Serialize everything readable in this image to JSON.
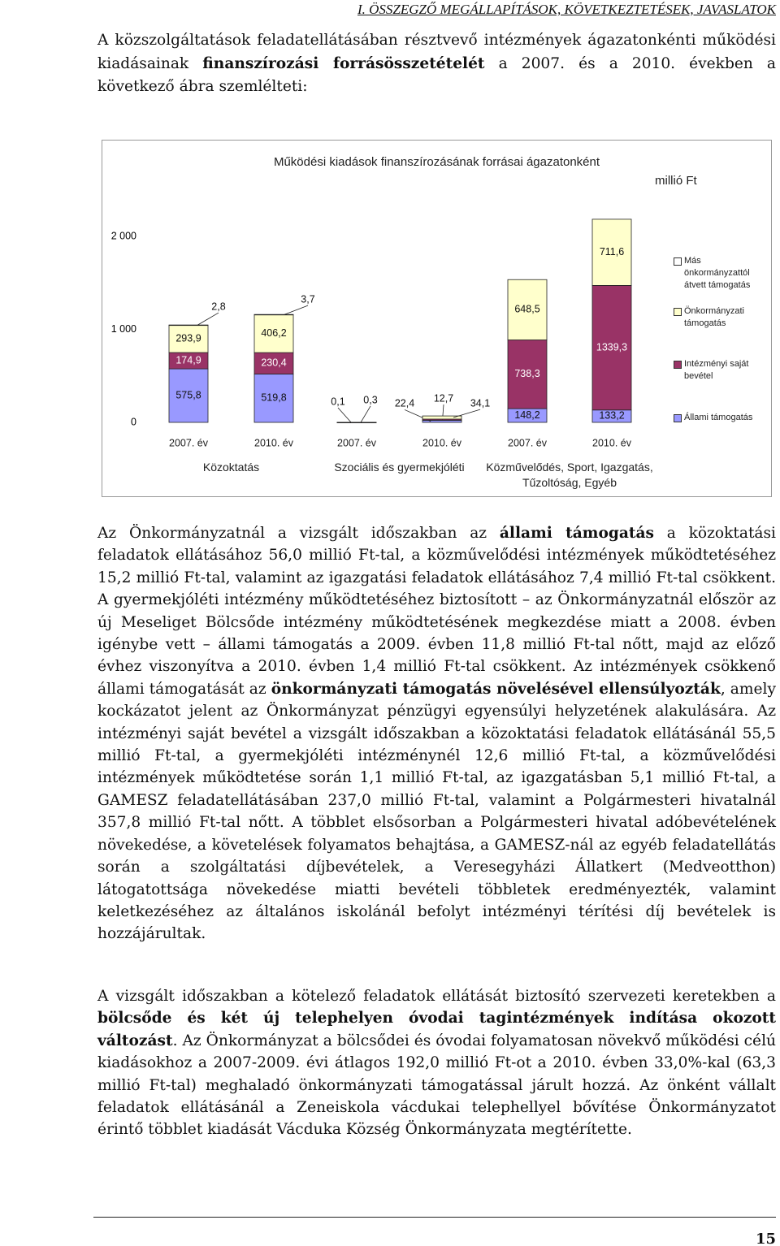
{
  "header": {
    "title": "I. ÖSSZEGZŐ MEGÁLLAPÍTÁSOK, KÖVETKEZTETÉSEK, JAVASLATOK"
  },
  "intro": {
    "runs": [
      {
        "text": "A közszolgáltatások feladatellátásában résztvevő intézmények ágazatonkénti működési kiadásainak "
      },
      {
        "text": "finanszírozási forrásösszetételét",
        "bold": true
      },
      {
        "text": " a 2007. és a 2010. években a következő ábra szemlélteti:"
      }
    ]
  },
  "chart_data": {
    "type": "bar",
    "stacked": true,
    "title": "Működési kiadások finanszírozásának forrásai ágazatonként",
    "unit_label": "millió Ft",
    "categories": [
      "2007. év",
      "2010. év",
      "2007. év",
      "2010. év",
      "2007. év",
      "2010. év"
    ],
    "groups": [
      "Közoktatás",
      "Szociális és gyermekjóléti",
      "Közművelődés, Sport, Igazgatás, Tűzoltóság, Egyéb"
    ],
    "series": [
      {
        "name": "Állami támogatás",
        "color": "#9999ff",
        "label_color": "#111111",
        "values": [
          575.8,
          519.8,
          0.1,
          22.4,
          148.2,
          133.2
        ],
        "value_labels": [
          "575,8",
          "519,8",
          "0,1",
          "22,4",
          "148,2",
          "133,2"
        ]
      },
      {
        "name": "Intézményi saját bevétel",
        "color": "#993366",
        "label_color": "#ffffff",
        "values": [
          174.9,
          230.4,
          0.3,
          12.7,
          738.3,
          1339.3
        ],
        "value_labels": [
          "174,9",
          "230,4",
          "0,3",
          "12,7",
          "738,3",
          "1339,3"
        ]
      },
      {
        "name": "Önkormányzati támogatás",
        "color": "#ffffcc",
        "label_color": "#111111",
        "values": [
          293.9,
          406.2,
          null,
          34.1,
          648.5,
          711.6
        ],
        "value_labels": [
          "293,9",
          "406,2",
          null,
          "34,1",
          "648,5",
          "711,6"
        ]
      },
      {
        "name": "Más önkormányzattól átvett támogatás",
        "color": "#ffffff",
        "label_color": "#111111",
        "values": [
          2.8,
          3.7,
          null,
          null,
          null,
          null
        ],
        "value_labels": [
          "2,8",
          "3,7",
          null,
          null,
          null,
          null
        ]
      }
    ],
    "ylim": [
      0,
      2000
    ],
    "yticks": [
      {
        "value": 0,
        "label": "0"
      },
      {
        "value": 1000,
        "label": "1 000"
      },
      {
        "value": 2000,
        "label": "2 000"
      }
    ],
    "grid": false,
    "legend": "right"
  },
  "body": [
    {
      "runs": [
        {
          "text": "Az Önkormányzatnál a vizsgált időszakban az "
        },
        {
          "text": "állami támogatás",
          "bold": true
        },
        {
          "text": " a közoktatási feladatok ellátásához 56,0 millió Ft-tal, a közművelődési intézmények működtetéséhez 15,2 millió Ft-tal, valamint az igazgatási feladatok ellátásához 7,4 millió Ft-tal csökkent. A gyermekjóléti intézmény működtetéséhez biztosított – az Önkormányzatnál először az új Meseliget Bölcsőde intézmény működtetésének megkezdése miatt a 2008. évben igénybe vett – állami támogatás a 2009. évben 11,8 millió Ft-tal nőtt, majd az előző évhez viszonyítva a 2010. évben 1,4 millió Ft-tal csökkent. Az intézmények csökkenő állami támogatását az "
        },
        {
          "text": "önkormányzati támogatás növelésével ellensúlyozták",
          "bold": true
        },
        {
          "text": ", amely kockázatot jelent az Önkormányzat pénzügyi egyensúlyi helyzetének alakulására. Az intézményi saját bevétel a vizsgált időszakban a közoktatási feladatok ellátásánál 55,5 millió Ft-tal, a gyermekjóléti intézménynél 12,6 millió Ft-tal, a közművelődési intézmények működtetése során 1,1 millió Ft-tal, az igazgatásban 5,1 millió Ft-tal, a GAMESZ feladatellátásában 237,0 millió Ft-tal, valamint a Polgármesteri hivatalnál 357,8 millió Ft-tal nőtt. A többlet elsősorban a Polgármesteri hivatal adóbevételének növekedése, a követelések folyamatos behajtása, a GAMESZ-nál az egyéb feladatellátás során a szolgáltatási díjbevételek, a Veresegyházi Állatkert (Medveotthon) látogatottsága növekedése miatti bevételi többletek eredményezték, valamint keletkezéséhez az általános iskolánál befolyt intézményi térítési díj bevételek is hozzájárultak."
        }
      ]
    },
    {
      "runs": [
        {
          "text": "A vizsgált időszakban a kötelező feladatok ellátását biztosító szervezeti keretekben a "
        },
        {
          "text": "bölcsőde és két új telephelyen óvodai tagintézmények indítása okozott változást",
          "bold": true
        },
        {
          "text": ". Az Önkormányzat a bölcsődei és óvodai folyamatosan növekvő működési célú kiadásokhoz a 2007-2009. évi átlagos 192,0 millió Ft-ot a 2010. évben 33,0%-kal (63,3 millió Ft-tal) meghaladó önkormányzati támogatással járult hozzá. Az önként vállalt feladatok ellátásánál a Zeneiskola vácdukai telephellyel bővítése Önkormányzatot érintő többlet kiadását Vácduka Község Önkormányzata megtérítette."
        }
      ]
    }
  ],
  "footer": {
    "page": "15"
  }
}
